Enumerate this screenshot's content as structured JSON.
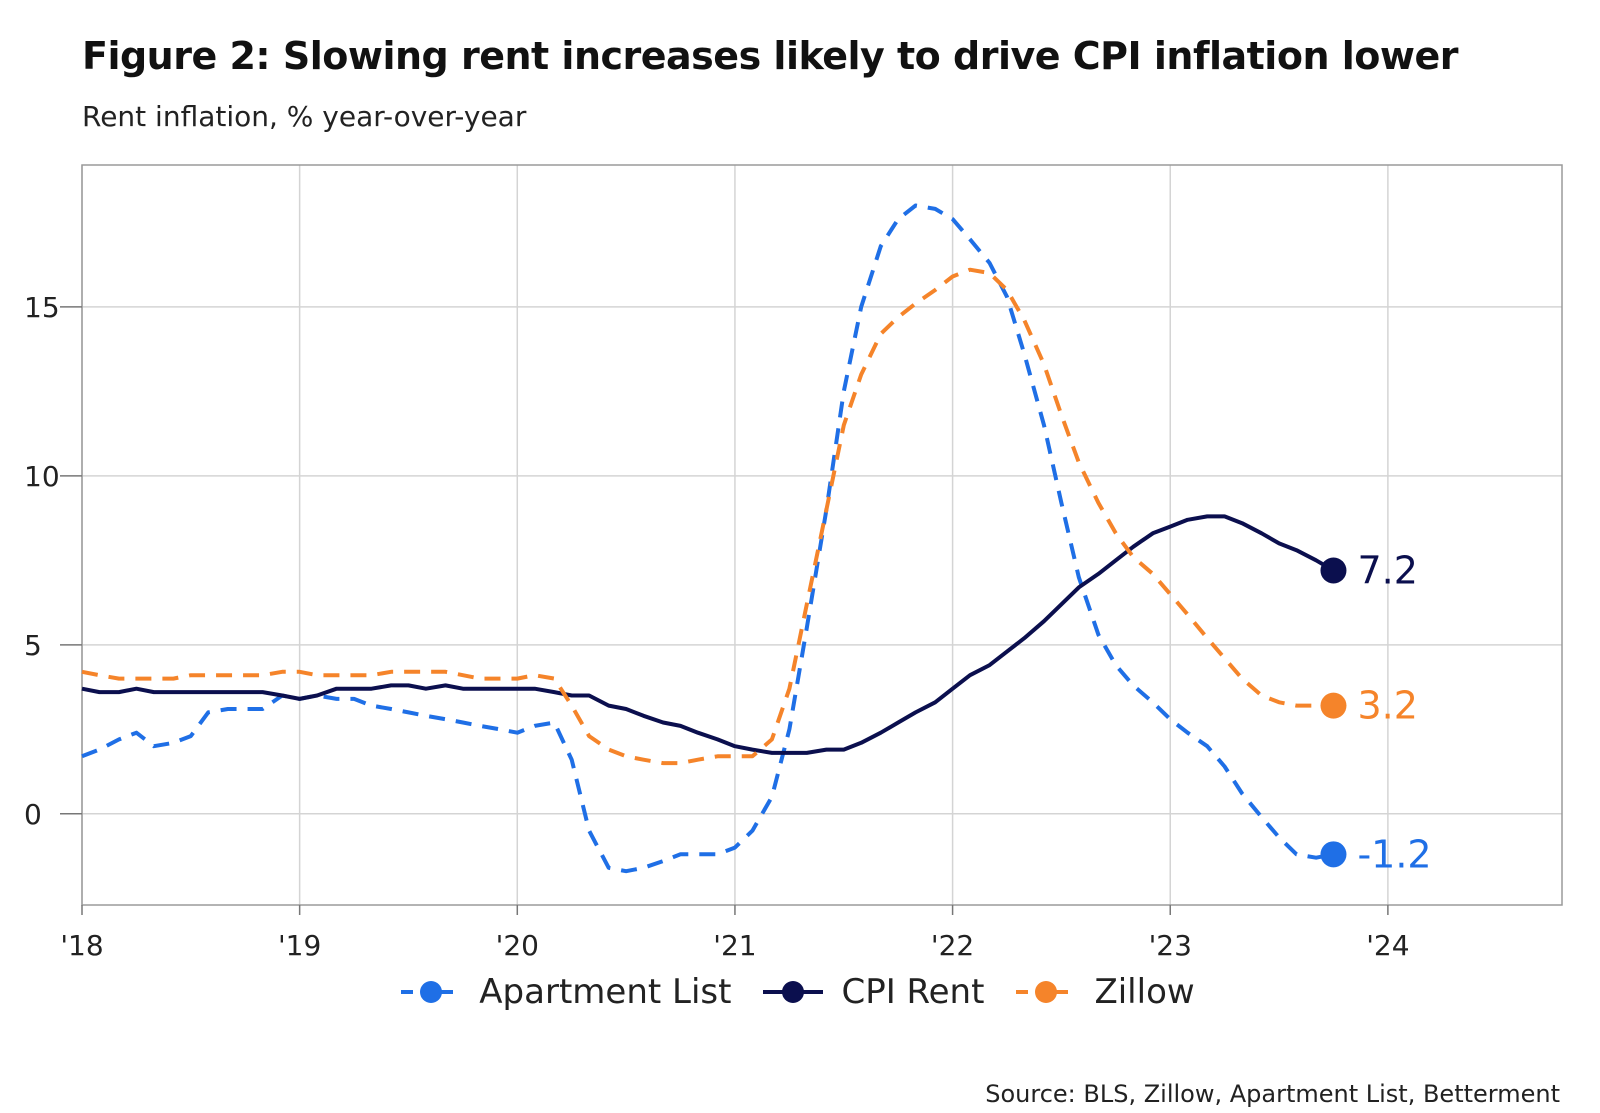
{
  "chart_data": {
    "type": "line",
    "title": "Figure 2: Slowing rent increases likely to drive CPI inflation lower",
    "subtitle": "Rent inflation, % year-over-year",
    "source": "Source: BLS, Zillow, Apartment List, Betterment",
    "xlabel": "",
    "ylabel": "",
    "xlim": [
      2018.0,
      2024.8
    ],
    "ylim": [
      -2.7,
      19.2
    ],
    "x_ticks": [
      {
        "value": 2018,
        "label": "'18"
      },
      {
        "value": 2019,
        "label": "'19"
      },
      {
        "value": 2020,
        "label": "'20"
      },
      {
        "value": 2021,
        "label": "'21"
      },
      {
        "value": 2022,
        "label": "'22"
      },
      {
        "value": 2023,
        "label": "'23"
      },
      {
        "value": 2024,
        "label": "'24"
      }
    ],
    "y_ticks": [
      {
        "value": 0,
        "label": "0"
      },
      {
        "value": 5,
        "label": "5"
      },
      {
        "value": 10,
        "label": "10"
      },
      {
        "value": 15,
        "label": "15"
      }
    ],
    "grid": true,
    "legend_position": "bottom-center",
    "series": [
      {
        "name": "Apartment List",
        "color": "#1f6fe6",
        "dash": true,
        "end_label": "-1.2",
        "x": [
          2018.0,
          2018.08,
          2018.17,
          2018.25,
          2018.33,
          2018.42,
          2018.5,
          2018.58,
          2018.67,
          2018.75,
          2018.83,
          2018.92,
          2019.0,
          2019.08,
          2019.17,
          2019.25,
          2019.33,
          2019.42,
          2019.5,
          2019.58,
          2019.67,
          2019.75,
          2019.83,
          2019.92,
          2020.0,
          2020.08,
          2020.17,
          2020.25,
          2020.33,
          2020.42,
          2020.5,
          2020.58,
          2020.67,
          2020.75,
          2020.83,
          2020.92,
          2021.0,
          2021.08,
          2021.17,
          2021.25,
          2021.33,
          2021.42,
          2021.5,
          2021.58,
          2021.67,
          2021.75,
          2021.83,
          2021.92,
          2022.0,
          2022.08,
          2022.17,
          2022.25,
          2022.33,
          2022.42,
          2022.5,
          2022.58,
          2022.67,
          2022.75,
          2022.83,
          2022.92,
          2023.0,
          2023.08,
          2023.17,
          2023.25,
          2023.33,
          2023.42,
          2023.5,
          2023.58,
          2023.67,
          2023.75
        ],
        "values": [
          1.7,
          1.9,
          2.2,
          2.4,
          2.0,
          2.1,
          2.3,
          3.0,
          3.1,
          3.1,
          3.1,
          3.5,
          3.4,
          3.5,
          3.4,
          3.4,
          3.2,
          3.1,
          3.0,
          2.9,
          2.8,
          2.7,
          2.6,
          2.5,
          2.4,
          2.6,
          2.7,
          1.6,
          -0.5,
          -1.6,
          -1.7,
          -1.6,
          -1.4,
          -1.2,
          -1.2,
          -1.2,
          -1.0,
          -0.5,
          0.5,
          2.5,
          5.5,
          9.0,
          12.5,
          15.0,
          16.8,
          17.6,
          18.0,
          17.9,
          17.6,
          17.0,
          16.3,
          15.3,
          13.6,
          11.5,
          9.2,
          7.0,
          5.3,
          4.4,
          3.8,
          3.3,
          2.8,
          2.4,
          2.0,
          1.4,
          0.6,
          -0.1,
          -0.7,
          -1.2,
          -1.3,
          -1.2
        ]
      },
      {
        "name": "CPI Rent",
        "color": "#0b0f4e",
        "dash": false,
        "end_label": "7.2",
        "x": [
          2018.0,
          2018.08,
          2018.17,
          2018.25,
          2018.33,
          2018.42,
          2018.5,
          2018.58,
          2018.67,
          2018.75,
          2018.83,
          2018.92,
          2019.0,
          2019.08,
          2019.17,
          2019.25,
          2019.33,
          2019.42,
          2019.5,
          2019.58,
          2019.67,
          2019.75,
          2019.83,
          2019.92,
          2020.0,
          2020.08,
          2020.17,
          2020.25,
          2020.33,
          2020.42,
          2020.5,
          2020.58,
          2020.67,
          2020.75,
          2020.83,
          2020.92,
          2021.0,
          2021.08,
          2021.17,
          2021.25,
          2021.33,
          2021.42,
          2021.5,
          2021.58,
          2021.67,
          2021.75,
          2021.83,
          2021.92,
          2022.0,
          2022.08,
          2022.17,
          2022.25,
          2022.33,
          2022.42,
          2022.5,
          2022.58,
          2022.67,
          2022.75,
          2022.83,
          2022.92,
          2023.0,
          2023.08,
          2023.17,
          2023.25,
          2023.33,
          2023.42,
          2023.5,
          2023.58,
          2023.67,
          2023.75
        ],
        "values": [
          3.7,
          3.6,
          3.6,
          3.7,
          3.6,
          3.6,
          3.6,
          3.6,
          3.6,
          3.6,
          3.6,
          3.5,
          3.4,
          3.5,
          3.7,
          3.7,
          3.7,
          3.8,
          3.8,
          3.7,
          3.8,
          3.7,
          3.7,
          3.7,
          3.7,
          3.7,
          3.6,
          3.5,
          3.5,
          3.2,
          3.1,
          2.9,
          2.7,
          2.6,
          2.4,
          2.2,
          2.0,
          1.9,
          1.8,
          1.8,
          1.8,
          1.9,
          1.9,
          2.1,
          2.4,
          2.7,
          3.0,
          3.3,
          3.7,
          4.1,
          4.4,
          4.8,
          5.2,
          5.7,
          6.2,
          6.7,
          7.1,
          7.5,
          7.9,
          8.3,
          8.5,
          8.7,
          8.8,
          8.8,
          8.6,
          8.3,
          8.0,
          7.8,
          7.5,
          7.2
        ]
      },
      {
        "name": "Zillow",
        "color": "#f5842a",
        "dash": true,
        "end_label": "3.2",
        "x": [
          2018.0,
          2018.08,
          2018.17,
          2018.25,
          2018.33,
          2018.42,
          2018.5,
          2018.58,
          2018.67,
          2018.75,
          2018.83,
          2018.92,
          2019.0,
          2019.08,
          2019.17,
          2019.25,
          2019.33,
          2019.42,
          2019.5,
          2019.58,
          2019.67,
          2019.75,
          2019.83,
          2019.92,
          2020.0,
          2020.08,
          2020.17,
          2020.25,
          2020.33,
          2020.42,
          2020.5,
          2020.58,
          2020.67,
          2020.75,
          2020.83,
          2020.92,
          2021.0,
          2021.08,
          2021.17,
          2021.25,
          2021.33,
          2021.42,
          2021.5,
          2021.58,
          2021.67,
          2021.75,
          2021.83,
          2021.92,
          2022.0,
          2022.08,
          2022.17,
          2022.25,
          2022.33,
          2022.42,
          2022.5,
          2022.58,
          2022.67,
          2022.75,
          2022.83,
          2022.92,
          2023.0,
          2023.08,
          2023.17,
          2023.25,
          2023.33,
          2023.42,
          2023.5,
          2023.58,
          2023.67,
          2023.75
        ],
        "values": [
          4.2,
          4.1,
          4.0,
          4.0,
          4.0,
          4.0,
          4.1,
          4.1,
          4.1,
          4.1,
          4.1,
          4.2,
          4.2,
          4.1,
          4.1,
          4.1,
          4.1,
          4.2,
          4.2,
          4.2,
          4.2,
          4.1,
          4.0,
          4.0,
          4.0,
          4.1,
          4.0,
          3.2,
          2.3,
          1.9,
          1.7,
          1.6,
          1.5,
          1.5,
          1.6,
          1.7,
          1.7,
          1.7,
          2.2,
          3.7,
          6.2,
          9.0,
          11.5,
          13.0,
          14.2,
          14.7,
          15.1,
          15.5,
          15.9,
          16.1,
          16.0,
          15.5,
          14.6,
          13.3,
          11.8,
          10.4,
          9.2,
          8.3,
          7.6,
          7.1,
          6.5,
          5.9,
          5.2,
          4.6,
          4.0,
          3.5,
          3.3,
          3.2,
          3.2,
          3.2
        ]
      }
    ]
  }
}
